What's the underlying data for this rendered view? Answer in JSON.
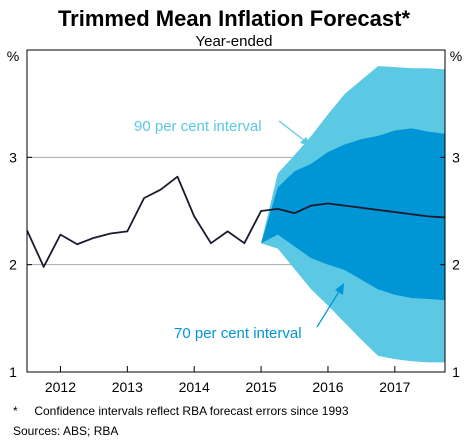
{
  "chart_data": {
    "type": "area",
    "title": "Trimmed Mean Inflation Forecast*",
    "subtitle": "Year-ended",
    "unit_left": "%",
    "unit_right": "%",
    "ylim": [
      1,
      4
    ],
    "y_ticks": [
      1,
      2,
      3
    ],
    "x_tick_labels": [
      "2012",
      "2013",
      "2014",
      "2015",
      "2016",
      "2017"
    ],
    "xlim": [
      2011.5,
      2017.75
    ],
    "grid": true,
    "series": [
      {
        "kind": "line",
        "color": "#1a1a2e",
        "x": [
          2011.5,
          2011.75,
          2012.0,
          2012.25,
          2012.5,
          2012.75,
          2013.0,
          2013.25,
          2013.5,
          2013.75,
          2014.0,
          2014.25,
          2014.5,
          2014.75,
          2015.0,
          2015.25,
          2015.5,
          2015.75,
          2016.0,
          2016.25,
          2016.5,
          2016.75,
          2017.0,
          2017.25,
          2017.5,
          2017.75
        ],
        "y": [
          2.32,
          1.98,
          2.28,
          2.19,
          2.25,
          2.29,
          2.31,
          2.62,
          2.7,
          2.82,
          2.45,
          2.2,
          2.31,
          2.2,
          2.5,
          2.52,
          2.48,
          2.55,
          2.57,
          2.55,
          2.53,
          2.51,
          2.49,
          2.47,
          2.45,
          2.44
        ]
      }
    ],
    "bands": [
      {
        "label": "90 per cent interval",
        "color": "#5bc8e4",
        "x": [
          2015.0,
          2015.25,
          2015.5,
          2015.75,
          2016.0,
          2016.25,
          2016.5,
          2016.75,
          2017.0,
          2017.25,
          2017.5,
          2017.75
        ],
        "upper": [
          2.2,
          2.85,
          3.02,
          3.2,
          3.4,
          3.59,
          3.72,
          3.85,
          3.84,
          3.83,
          3.83,
          3.82
        ],
        "lower": [
          2.2,
          2.15,
          1.96,
          1.77,
          1.62,
          1.46,
          1.3,
          1.15,
          1.12,
          1.1,
          1.09,
          1.09
        ]
      },
      {
        "label": "70 per cent interval",
        "color": "#0096d6",
        "x": [
          2015.0,
          2015.25,
          2015.5,
          2015.75,
          2016.0,
          2016.25,
          2016.5,
          2016.75,
          2017.0,
          2017.25,
          2017.5,
          2017.75
        ],
        "upper": [
          2.2,
          2.72,
          2.87,
          2.94,
          3.05,
          3.12,
          3.17,
          3.2,
          3.25,
          3.27,
          3.24,
          3.22
        ],
        "lower": [
          2.2,
          2.28,
          2.17,
          2.06,
          2.0,
          1.95,
          1.86,
          1.77,
          1.72,
          1.69,
          1.68,
          1.67
        ]
      }
    ],
    "annotations": [
      "90 per cent interval",
      "70 per cent interval"
    ],
    "footnote": "*     Confidence intervals reflect RBA forecast errors since 1993",
    "sources": "Sources:  ABS; RBA"
  }
}
